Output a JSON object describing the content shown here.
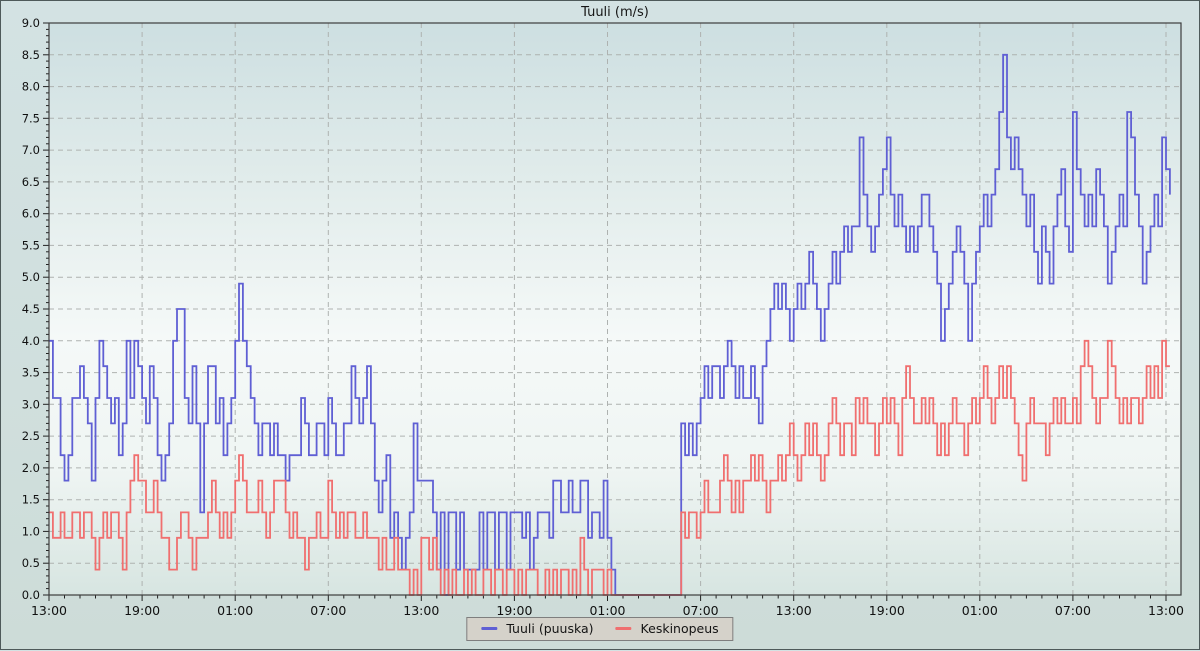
{
  "title": "Tuuli (m/s)",
  "legend": {
    "items": [
      {
        "label": "Tuuli (puuska)",
        "color": "#5f5fd4"
      },
      {
        "label": "Keskinopeus",
        "color": "#f06f6f"
      }
    ]
  },
  "chart_data": {
    "type": "line",
    "step": true,
    "title": "Tuuli (m/s)",
    "ylabel": "",
    "xlabel": "",
    "ylim": [
      0,
      9
    ],
    "y_tick_step": 0.5,
    "y_minor_step": 0.1,
    "y_tick_labels": [
      "0.0",
      "0.5",
      "1.0",
      "1.5",
      "2.0",
      "2.5",
      "3.0",
      "3.5",
      "4.0",
      "4.5",
      "5.0",
      "5.5",
      "6.0",
      "6.5",
      "7.0",
      "7.5",
      "8.0",
      "8.5",
      "9.0"
    ],
    "x_tick_hours": [
      0,
      6,
      12,
      18,
      24,
      30,
      36,
      42,
      48,
      54,
      60,
      66,
      72
    ],
    "x_tick_labels": [
      "13:00",
      "19:00",
      "01:00",
      "07:00",
      "13:00",
      "19:00",
      "01:00",
      "07:00",
      "13:00",
      "19:00",
      "01:00",
      "07:00",
      "13:00"
    ],
    "x_minor_step_hours": 1,
    "x_axis_span_hours": 73,
    "sample_interval_hours": 0.25,
    "grid": "dashed",
    "legend_position": "bottom-center",
    "series": [
      {
        "name": "Tuuli (puuska)",
        "color": "#5f5fd4",
        "values": [
          4.0,
          3.1,
          3.1,
          2.2,
          1.8,
          2.2,
          3.1,
          3.1,
          3.6,
          3.1,
          2.7,
          1.8,
          3.1,
          4.0,
          3.6,
          3.1,
          2.7,
          3.1,
          2.2,
          2.7,
          4.0,
          3.1,
          4.0,
          3.6,
          3.1,
          2.7,
          3.6,
          3.1,
          2.2,
          1.8,
          2.2,
          2.7,
          4.0,
          4.5,
          4.5,
          3.1,
          2.7,
          3.6,
          2.7,
          1.3,
          2.7,
          3.6,
          3.6,
          2.7,
          3.1,
          2.2,
          2.7,
          3.1,
          4.0,
          4.9,
          4.0,
          3.6,
          3.1,
          2.7,
          2.2,
          2.7,
          2.7,
          2.2,
          2.7,
          2.2,
          2.2,
          1.8,
          2.2,
          2.2,
          2.2,
          3.1,
          2.7,
          2.2,
          2.2,
          2.7,
          2.7,
          2.2,
          3.1,
          2.7,
          2.2,
          2.2,
          2.7,
          2.7,
          3.6,
          3.1,
          2.7,
          3.1,
          3.6,
          2.7,
          1.8,
          1.3,
          1.8,
          2.2,
          0.9,
          1.3,
          0.9,
          0.4,
          0.9,
          1.3,
          2.7,
          1.8,
          1.8,
          1.8,
          1.8,
          1.3,
          0.4,
          1.3,
          0.0,
          1.3,
          1.3,
          0.4,
          1.3,
          0.4,
          0.4,
          0.4,
          0.4,
          1.3,
          0.4,
          1.3,
          1.3,
          0.4,
          1.3,
          1.3,
          0.4,
          1.3,
          1.3,
          1.3,
          0.9,
          1.3,
          0.4,
          0.9,
          1.3,
          1.3,
          1.3,
          0.9,
          1.8,
          1.8,
          1.3,
          1.3,
          1.8,
          1.3,
          1.3,
          1.8,
          1.8,
          0.9,
          1.3,
          1.3,
          0.9,
          1.8,
          0.9,
          0.4,
          0.0,
          0.0,
          0.0,
          0.0,
          0.0,
          0.0,
          0.0,
          0.0,
          0.0,
          0.0,
          0.0,
          0.0,
          0.0,
          0.0,
          0.0,
          0.0,
          0.0,
          2.7,
          2.2,
          2.7,
          2.2,
          2.7,
          3.1,
          3.6,
          3.1,
          3.6,
          3.6,
          3.1,
          3.6,
          4.0,
          3.6,
          3.1,
          3.6,
          3.1,
          3.1,
          3.6,
          3.1,
          2.7,
          3.6,
          4.0,
          4.5,
          4.9,
          4.5,
          4.9,
          4.5,
          4.0,
          4.5,
          4.9,
          4.5,
          4.9,
          5.4,
          4.9,
          4.5,
          4.0,
          4.5,
          4.9,
          5.4,
          4.9,
          5.4,
          5.8,
          5.4,
          5.8,
          5.8,
          7.2,
          6.3,
          5.8,
          5.4,
          5.8,
          6.3,
          6.7,
          7.2,
          6.3,
          5.8,
          6.3,
          5.8,
          5.4,
          5.8,
          5.4,
          5.8,
          6.3,
          6.3,
          5.8,
          5.4,
          4.9,
          4.0,
          4.5,
          4.9,
          5.4,
          5.8,
          5.4,
          4.9,
          4.0,
          4.9,
          5.4,
          5.8,
          6.3,
          5.8,
          6.3,
          6.7,
          7.6,
          8.5,
          7.2,
          6.7,
          7.2,
          6.7,
          6.3,
          5.8,
          6.3,
          5.4,
          4.9,
          5.8,
          5.4,
          4.9,
          5.8,
          6.3,
          6.7,
          5.8,
          5.4,
          7.6,
          6.7,
          6.3,
          5.8,
          6.3,
          5.8,
          6.7,
          6.3,
          5.8,
          4.9,
          5.4,
          5.8,
          6.3,
          5.8,
          7.6,
          7.2,
          6.3,
          5.8,
          4.9,
          5.4,
          5.8,
          6.3,
          5.8,
          7.2,
          6.7,
          6.3
        ]
      },
      {
        "name": "Keskinopeus",
        "color": "#f06f6f",
        "values": [
          1.3,
          0.9,
          0.9,
          1.3,
          0.9,
          0.9,
          1.3,
          1.3,
          0.9,
          1.3,
          1.3,
          0.9,
          0.4,
          0.9,
          1.3,
          0.9,
          1.3,
          1.3,
          0.9,
          0.4,
          1.3,
          1.8,
          2.2,
          1.8,
          1.8,
          1.3,
          1.3,
          1.8,
          1.3,
          0.9,
          0.9,
          0.4,
          0.4,
          0.9,
          1.3,
          1.3,
          0.9,
          0.4,
          0.9,
          0.9,
          0.9,
          1.3,
          1.8,
          1.3,
          0.9,
          1.3,
          0.9,
          1.3,
          1.8,
          2.2,
          1.8,
          1.3,
          1.3,
          1.3,
          1.8,
          1.3,
          0.9,
          1.3,
          1.8,
          1.8,
          1.8,
          1.3,
          0.9,
          1.3,
          0.9,
          0.9,
          0.4,
          0.9,
          0.9,
          1.3,
          0.9,
          0.9,
          1.8,
          1.3,
          0.9,
          1.3,
          0.9,
          1.3,
          1.3,
          0.9,
          0.9,
          1.3,
          0.9,
          0.9,
          0.9,
          0.4,
          0.9,
          0.4,
          0.4,
          0.9,
          0.4,
          0.4,
          0.4,
          0.0,
          0.4,
          0.0,
          0.9,
          0.9,
          0.4,
          0.9,
          0.4,
          0.0,
          0.4,
          0.0,
          0.4,
          0.0,
          0.0,
          0.4,
          0.0,
          0.4,
          0.0,
          0.0,
          0.4,
          0.4,
          0.0,
          0.4,
          0.4,
          0.0,
          0.4,
          0.4,
          0.0,
          0.4,
          0.0,
          0.4,
          0.4,
          0.4,
          0.0,
          0.0,
          0.4,
          0.0,
          0.4,
          0.0,
          0.4,
          0.4,
          0.0,
          0.4,
          0.0,
          0.9,
          0.4,
          0.0,
          0.4,
          0.4,
          0.4,
          0.0,
          0.4,
          0.0,
          0.0,
          0.0,
          0.0,
          0.0,
          0.0,
          0.0,
          0.0,
          0.0,
          0.0,
          0.0,
          0.0,
          0.0,
          0.0,
          0.0,
          0.0,
          0.0,
          0.0,
          1.3,
          0.9,
          1.3,
          1.3,
          0.9,
          1.3,
          1.8,
          1.3,
          1.3,
          1.3,
          1.8,
          2.2,
          1.8,
          1.3,
          1.8,
          1.3,
          1.8,
          1.8,
          2.2,
          1.8,
          2.2,
          1.8,
          1.3,
          1.8,
          1.8,
          2.2,
          1.8,
          2.2,
          2.7,
          2.2,
          1.8,
          2.2,
          2.7,
          2.2,
          2.7,
          2.2,
          1.8,
          2.2,
          2.7,
          3.1,
          2.7,
          2.2,
          2.7,
          2.7,
          2.2,
          3.1,
          2.7,
          3.1,
          2.7,
          2.7,
          2.2,
          2.7,
          3.1,
          2.7,
          3.1,
          2.7,
          2.2,
          3.1,
          3.6,
          3.1,
          2.7,
          2.7,
          3.1,
          2.7,
          3.1,
          2.7,
          2.2,
          2.7,
          2.2,
          2.7,
          3.1,
          2.7,
          2.7,
          2.2,
          2.7,
          3.1,
          2.7,
          3.1,
          3.6,
          3.1,
          2.7,
          3.1,
          3.6,
          3.1,
          3.6,
          3.1,
          2.7,
          2.2,
          1.8,
          2.7,
          3.1,
          2.7,
          2.7,
          2.7,
          2.2,
          2.7,
          3.1,
          2.7,
          3.1,
          2.7,
          2.7,
          3.1,
          2.7,
          3.6,
          4.0,
          3.6,
          3.1,
          2.7,
          3.1,
          3.1,
          4.0,
          3.6,
          3.1,
          2.7,
          3.1,
          2.7,
          3.1,
          3.1,
          2.7,
          3.1,
          3.6,
          3.1,
          3.6,
          3.1,
          4.0,
          3.6,
          3.6
        ]
      }
    ]
  }
}
